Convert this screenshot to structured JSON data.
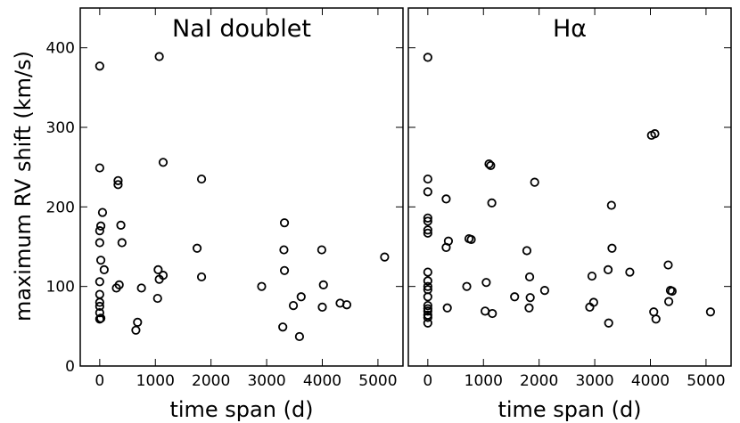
{
  "chart_data": [
    {
      "type": "scatter",
      "title": "NaI doublet",
      "xlabel": "time span (d)",
      "ylabel": "maximum RV shift (km/s)",
      "xlim": [
        -350,
        5450
      ],
      "ylim": [
        0,
        450
      ],
      "xticks": [
        0,
        1000,
        2000,
        3000,
        4000,
        5000
      ],
      "yticks": [
        0,
        100,
        200,
        300,
        400
      ],
      "x": [
        0,
        0,
        0,
        0,
        0,
        0,
        0,
        0,
        0,
        0,
        20,
        20,
        20,
        50,
        80,
        300,
        330,
        330,
        350,
        380,
        400,
        650,
        680,
        750,
        1040,
        1050,
        1070,
        1070,
        1140,
        1140,
        1750,
        1830,
        1830,
        2910,
        3290,
        3310,
        3320,
        3320,
        3480,
        3590,
        3620,
        3990,
        4000,
        4020,
        4320,
        4440,
        5120
      ],
      "y": [
        377,
        249,
        170,
        155,
        106,
        90,
        80,
        75,
        67,
        59,
        176,
        133,
        60,
        193,
        121,
        98,
        233,
        228,
        102,
        177,
        155,
        45,
        55,
        98,
        85,
        121,
        109,
        389,
        114,
        256,
        148,
        235,
        112,
        100,
        49,
        146,
        120,
        180,
        76,
        37,
        87,
        146,
        74,
        102,
        79,
        77,
        137
      ]
    },
    {
      "type": "scatter",
      "title": "Hα",
      "xlabel": "time span (d)",
      "ylabel": "",
      "xlim": [
        -350,
        5450
      ],
      "ylim": [
        0,
        450
      ],
      "xticks": [
        0,
        1000,
        2000,
        3000,
        4000,
        5000
      ],
      "x": [
        0,
        0,
        0,
        0,
        0,
        0,
        0,
        0,
        0,
        0,
        0,
        0,
        0,
        0,
        0,
        0,
        0,
        0,
        330,
        330,
        350,
        370,
        700,
        740,
        780,
        1030,
        1050,
        1100,
        1130,
        1150,
        1160,
        1560,
        1780,
        1820,
        1830,
        1840,
        1920,
        2100,
        2910,
        2950,
        2980,
        3240,
        3250,
        3300,
        3310,
        3630,
        4020,
        4060,
        4080,
        4100,
        4320,
        4330,
        4360,
        4390,
        5080
      ],
      "y": [
        388,
        235,
        219,
        186,
        182,
        171,
        167,
        118,
        107,
        100,
        96,
        87,
        76,
        72,
        69,
        64,
        61,
        54,
        210,
        149,
        73,
        157,
        100,
        160,
        159,
        69,
        105,
        254,
        252,
        205,
        66,
        87,
        145,
        73,
        112,
        86,
        231,
        95,
        74,
        113,
        80,
        121,
        54,
        202,
        148,
        118,
        290,
        68,
        292,
        59,
        127,
        81,
        95,
        94,
        68
      ]
    }
  ]
}
